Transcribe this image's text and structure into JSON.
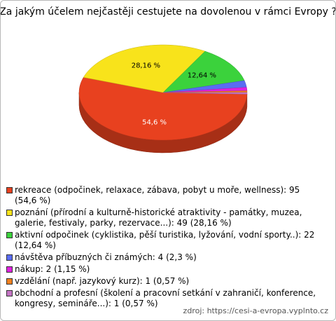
{
  "chart_data": {
    "type": "pie",
    "title": "Za jakým účelem nejčastěji cestujete na dovolenou v rámci Evropy ?",
    "categories": [
      "rekreace (odpočinek, relaxace, zábava, pobyt u moře, wellness): 95 (54,6 %)",
      "poznání (přírodní a kulturně-historické atraktivity - památky, muzea, galerie, festivaly, parky, rezervace...): 49 (28,16 %)",
      "aktivní odpočinek (cyklistika, pěší turistika, lyžování, vodní sporty..): 22 (12,64 %)",
      "návštěva příbuzných či známých: 4 (2,3 %)",
      "nákup: 2 (1,15 %)",
      "vzdělání (např. jazykový kurz): 1 (0,57 %)",
      "obchodní a profesní (školení a pracovní setkání v zahraničí, konference, kongresy, semináře...): 1 (0,57 %)"
    ],
    "values": [
      54.6,
      28.16,
      12.64,
      2.3,
      1.15,
      0.57,
      0.57
    ],
    "value_labels": [
      "54,6 %",
      "28,16 %",
      "12,64 %",
      null,
      null,
      null,
      null
    ],
    "colors": [
      "#e8411f",
      "#f8e31b",
      "#3bd23c",
      "#5a6cf2",
      "#e021df",
      "#f0801f",
      "#c474c4"
    ],
    "source": "zdroj: https://cesi-a-evropa.vyplnto.cz"
  }
}
